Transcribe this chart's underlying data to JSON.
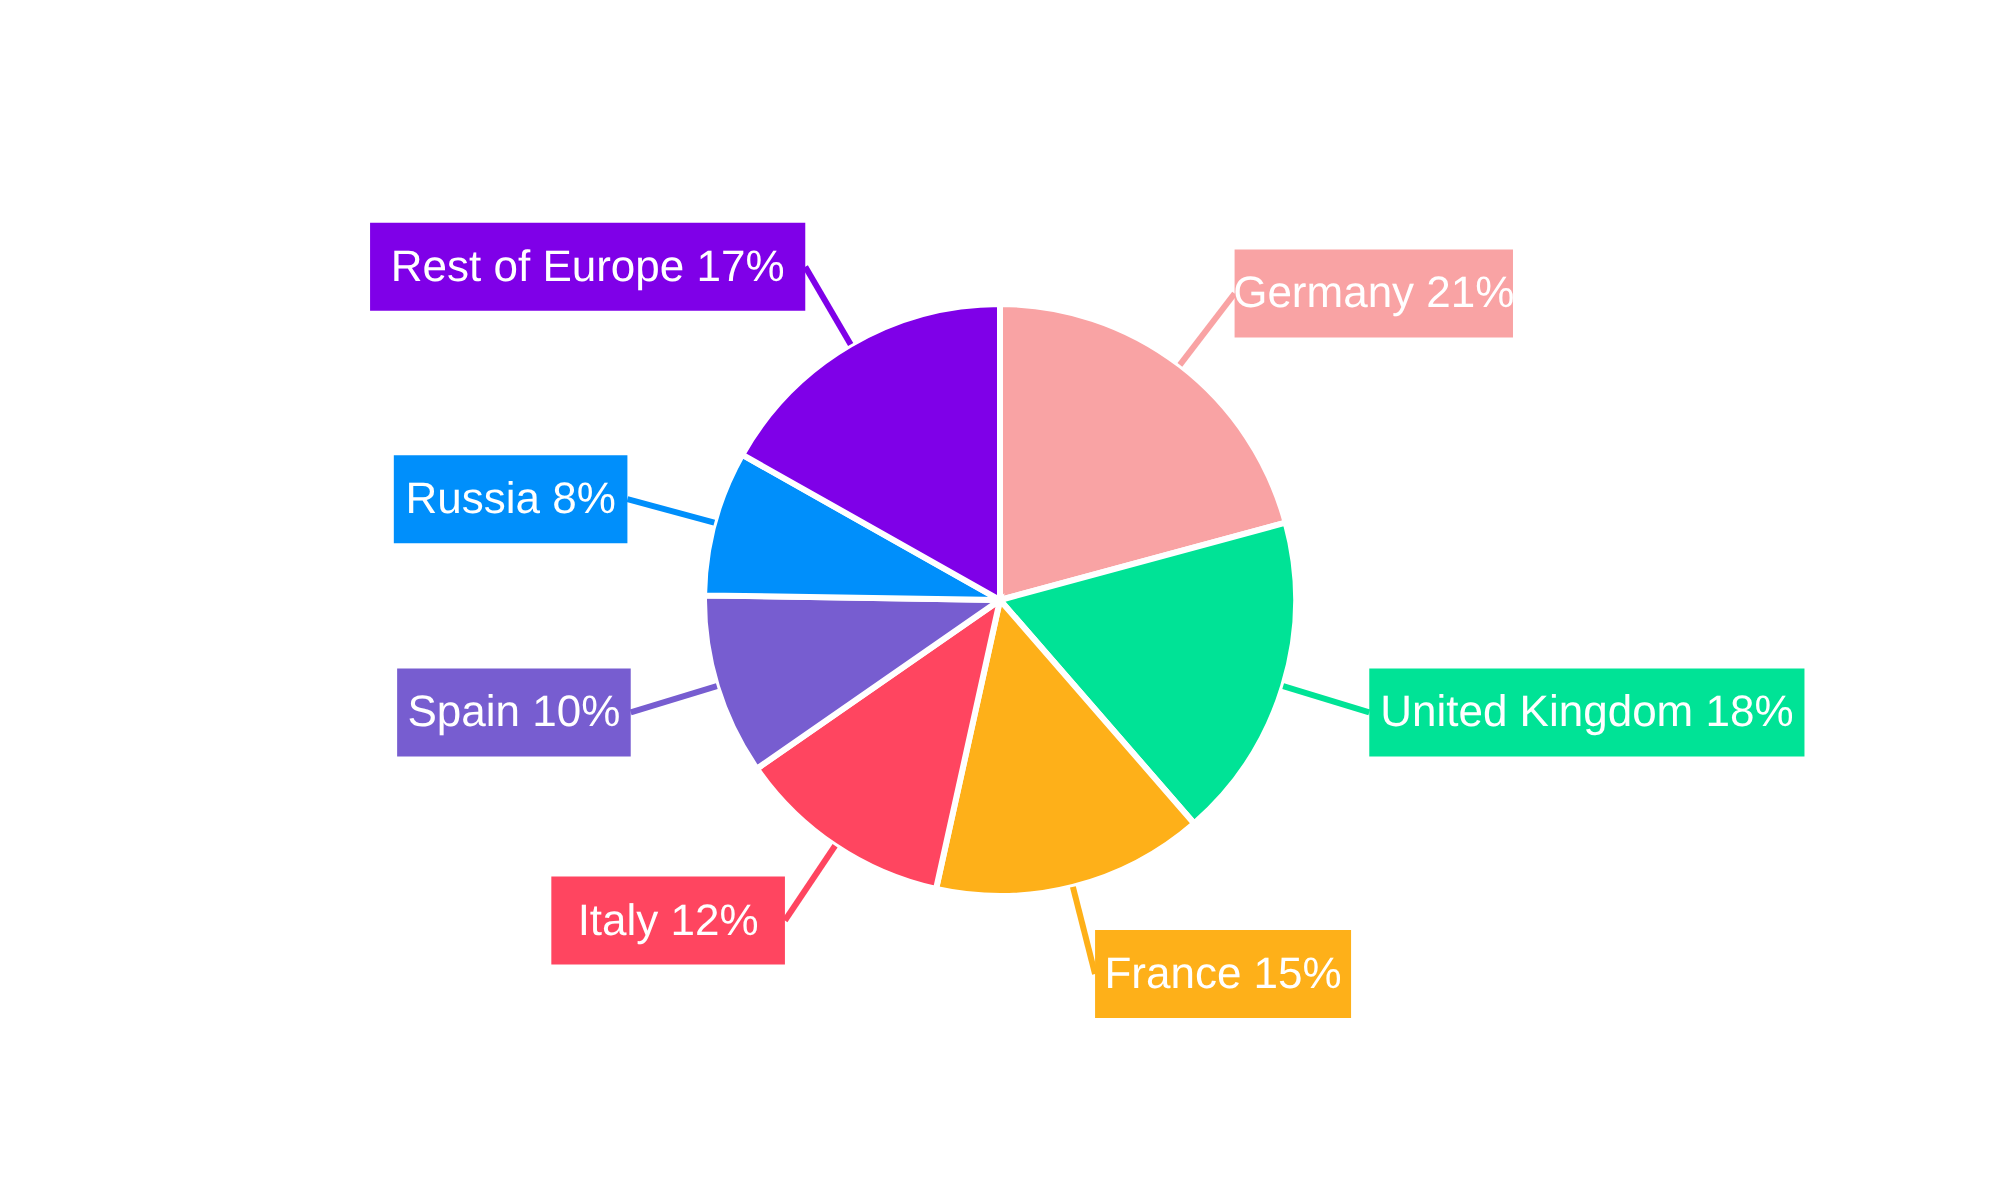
{
  "chart_data": {
    "type": "pie",
    "categories": [
      "Germany",
      "United Kingdom",
      "France",
      "Italy",
      "Spain",
      "Russia",
      "Rest of Europe"
    ],
    "values": [
      21,
      18,
      15,
      12,
      10,
      8,
      17
    ],
    "value_labels": [
      "21%",
      "18%",
      "15%",
      "12%",
      "10%",
      "8%",
      "17%"
    ],
    "colors": [
      "#f9a3a4",
      "#00e396",
      "#feb019",
      "#ff4560",
      "#775dd0",
      "#008ffb",
      "#7f00e8"
    ]
  }
}
